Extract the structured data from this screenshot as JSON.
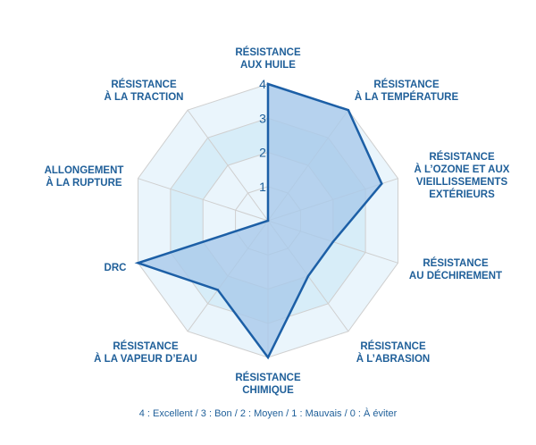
{
  "chart_data": {
    "type": "radar",
    "axes": [
      [
        "RÉSISTANCE",
        "AUX HUILE"
      ],
      [
        "RÉSISTANCE",
        "À LA TEMPÉRATURE"
      ],
      [
        "RÉSISTANCE",
        "À L’OZONE ET AUX",
        "VIEILLISSEMENTS",
        "EXTÉRIEURS"
      ],
      [
        "RÉSISTANCE",
        "AU DÉCHIREMENT"
      ],
      [
        "RÉSISTANCE",
        "À L’ABRASION"
      ],
      [
        "RÉSISTANCE",
        "CHIMIQUE"
      ],
      [
        "RÉSISTANCE",
        "À LA VAPEUR D’EAU"
      ],
      [
        "DRC"
      ],
      [
        "ALLONGEMENT",
        "À LA RUPTURE"
      ],
      [
        "RÉSISTANCE",
        "À LA TRACTION"
      ]
    ],
    "values": [
      4,
      4,
      3.5,
      2,
      2,
      4,
      2.5,
      4,
      0,
      0
    ],
    "r_ticks": [
      "1",
      "2",
      "3",
      "4"
    ],
    "r_max": 4,
    "grid": true,
    "legend_text": "4 : Excellent / 3 : Bon / 2 :  Moyen / 1 : Mauvais / 0 : À éviter",
    "colors": {
      "ring_fill_light": "#eaf5fc",
      "ring_fill_dark": "#d7edf8",
      "grid_stroke": "#cfcfcf",
      "data_fill": "#a9c9ea",
      "data_stroke": "#1c5fa6",
      "text": "#1f5f99"
    }
  }
}
